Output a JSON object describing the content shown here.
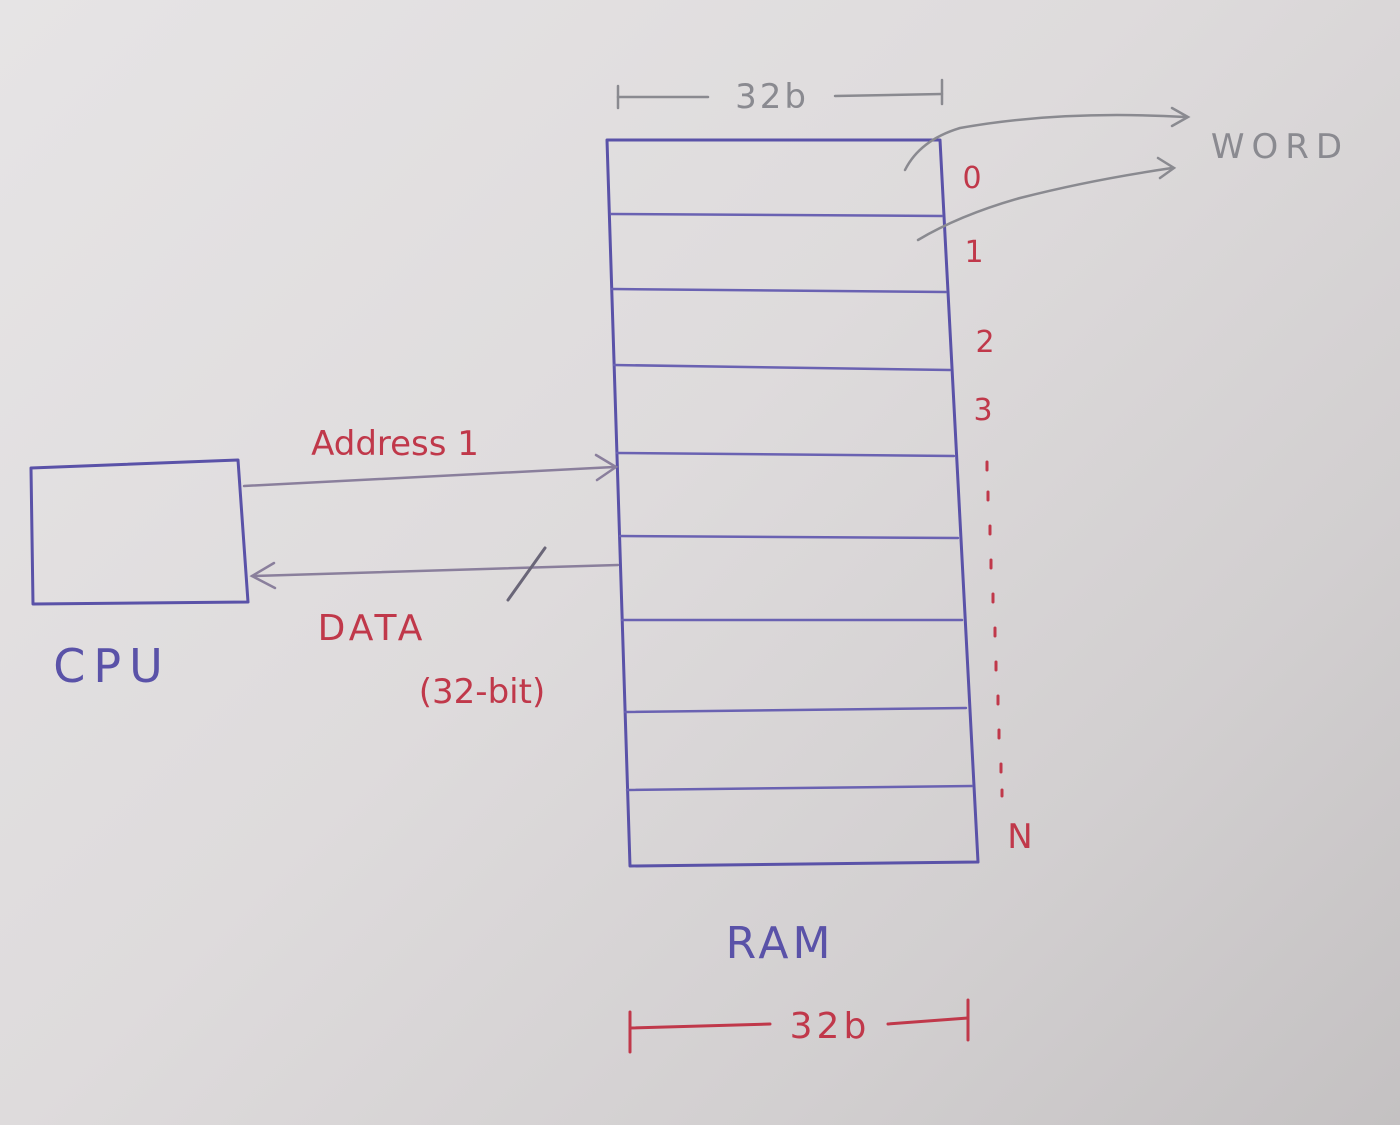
{
  "diagram": {
    "cpu": {
      "label": "CPU"
    },
    "ram": {
      "label": "RAM",
      "top_width_label": "32b",
      "bottom_width_label": "32b",
      "addresses": [
        "0",
        "1",
        "2",
        "3"
      ],
      "last_address": "N"
    },
    "word_label": "WORD",
    "address_bus": {
      "label": "Address 1"
    },
    "data_bus": {
      "label": "DATA",
      "sublabel": "(32-bit)"
    }
  },
  "colors": {
    "ink_blue": "#5a52a8",
    "ink_red": "#c0384a",
    "ink_pencil": "#8a8a90",
    "paper": "#dedbdc"
  }
}
